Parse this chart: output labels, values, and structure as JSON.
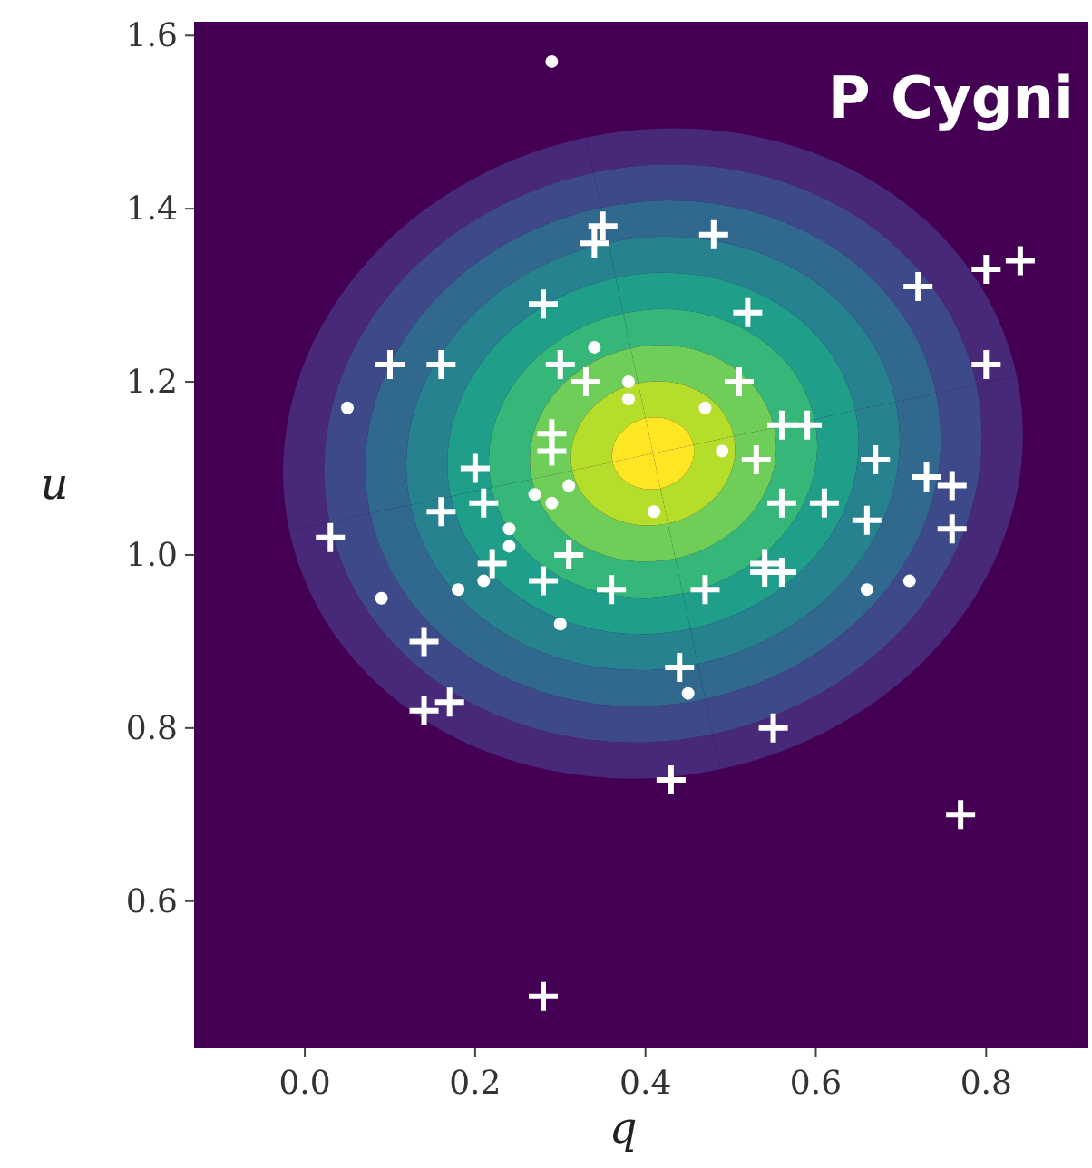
{
  "chart_data": {
    "type": "scatter",
    "title": "P Cygni",
    "xlabel": "q",
    "ylabel": "u",
    "xlim": [
      -0.13,
      0.92
    ],
    "ylim": [
      0.43,
      1.616
    ],
    "xticks": [
      {
        "value": 0,
        "label": "0.0"
      },
      0.2,
      0.4,
      0.6,
      0.8
    ],
    "yticks": [
      0.6,
      0.8,
      {
        "value": 1,
        "label": "1.0"
      },
      1.2,
      1.4,
      1.6
    ],
    "grid": false,
    "series": [
      {
        "color": "#ffffff",
        "marker": "cross",
        "x": [
          0.35,
          0.34,
          0.28,
          0.1,
          0.16,
          0.3,
          0.33,
          0.29,
          0.29,
          0.2,
          0.21,
          0.16,
          0.03,
          0.31,
          0.22,
          0.28,
          0.36,
          0.14,
          0.14,
          0.17,
          0.28,
          0.48,
          0.72,
          0.8,
          0.84,
          0.52,
          0.51,
          0.8,
          0.56,
          0.59,
          0.67,
          0.53,
          0.73,
          0.76,
          0.76,
          0.56,
          0.61,
          0.66,
          0.54,
          0.47,
          0.54,
          0.56,
          0.44,
          0.55,
          0.43,
          0.77
        ],
        "values": [
          1.38,
          1.36,
          1.29,
          1.22,
          1.22,
          1.22,
          1.2,
          1.14,
          1.12,
          1.1,
          1.06,
          1.05,
          1.02,
          1.0,
          0.99,
          0.97,
          0.96,
          0.9,
          0.82,
          0.83,
          0.49,
          1.37,
          1.31,
          1.33,
          1.34,
          1.28,
          1.2,
          1.22,
          1.15,
          1.15,
          1.11,
          1.11,
          1.09,
          1.08,
          1.03,
          1.06,
          1.06,
          1.04,
          0.99,
          0.96,
          0.98,
          0.98,
          0.87,
          0.8,
          0.74,
          0.7
        ]
      },
      {
        "color": "#ffffff",
        "marker": "circle",
        "x": [
          0.29,
          0.05,
          0.34,
          0.38,
          0.38,
          0.27,
          0.29,
          0.31,
          0.24,
          0.24,
          0.47,
          0.49,
          0.41,
          0.09,
          0.18,
          0.21,
          0.3,
          0.45,
          0.66,
          0.71
        ],
        "values": [
          1.57,
          1.17,
          1.24,
          1.2,
          1.18,
          1.07,
          1.06,
          1.08,
          1.03,
          1.01,
          1.17,
          1.12,
          1.05,
          0.95,
          0.96,
          0.97,
          0.92,
          0.84,
          0.96,
          0.97
        ]
      }
    ]
  }
}
